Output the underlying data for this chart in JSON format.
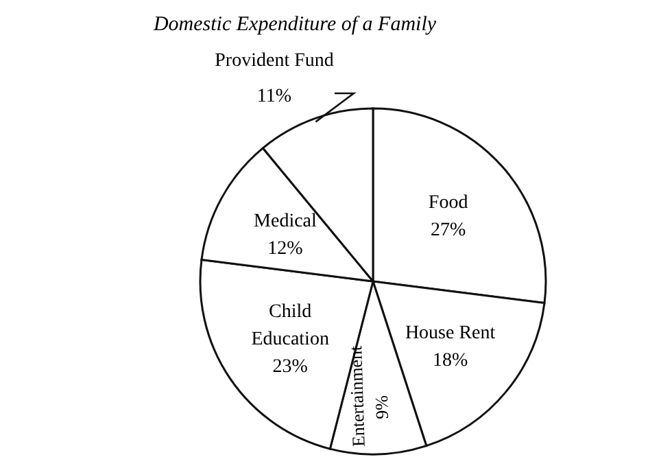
{
  "chart_data": {
    "type": "pie",
    "title": "Domestic Expenditure of a Family",
    "categories": [
      "Food",
      "House Rent",
      "Entertainment",
      "Child Education",
      "Medical",
      "Provident Fund"
    ],
    "values": [
      27,
      18,
      9,
      23,
      12,
      11
    ],
    "value_labels": [
      "27%",
      "18%",
      "9%",
      "23%",
      "12%",
      "11%"
    ],
    "colors": [
      "#ffffff",
      "#ffffff",
      "#ffffff",
      "#ffffff",
      "#ffffff",
      "#ffffff"
    ]
  }
}
